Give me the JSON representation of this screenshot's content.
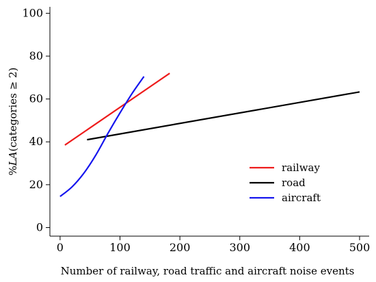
{
  "chart_data": {
    "type": "line",
    "title": "",
    "xlabel": "Number of railway, road traffic and aircraft noise events",
    "ylabel_prefix": "%",
    "ylabel_italic": "LA",
    "ylabel_suffix": "(categories ≥ 2)",
    "xlim": [
      -17,
      516
    ],
    "ylim": [
      -4,
      103
    ],
    "xticks": [
      0,
      100,
      200,
      300,
      400,
      500
    ],
    "xtick_labels": [
      "0",
      "100",
      "200",
      "300",
      "400",
      "500"
    ],
    "yticks": [
      0,
      20,
      40,
      60,
      80,
      100
    ],
    "ytick_labels": [
      "0",
      "20",
      "40",
      "60",
      "80",
      "100"
    ],
    "grid": false,
    "legend_position": "bottom-right",
    "series": [
      {
        "name": "railway",
        "color": "#ee1c1c",
        "x": [
          8,
          183
        ],
        "y": [
          38.5,
          72
        ]
      },
      {
        "name": "road",
        "color": "#000000",
        "x": [
          45,
          500
        ],
        "y": [
          41,
          63.3
        ]
      },
      {
        "name": "aircraft",
        "color": "#1515ee",
        "x": [
          0,
          20,
          40,
          60,
          80,
          100,
          120,
          140
        ],
        "y": [
          14.5,
          19,
          25.5,
          34,
          44,
          53.5,
          62.5,
          70.5
        ]
      }
    ]
  }
}
